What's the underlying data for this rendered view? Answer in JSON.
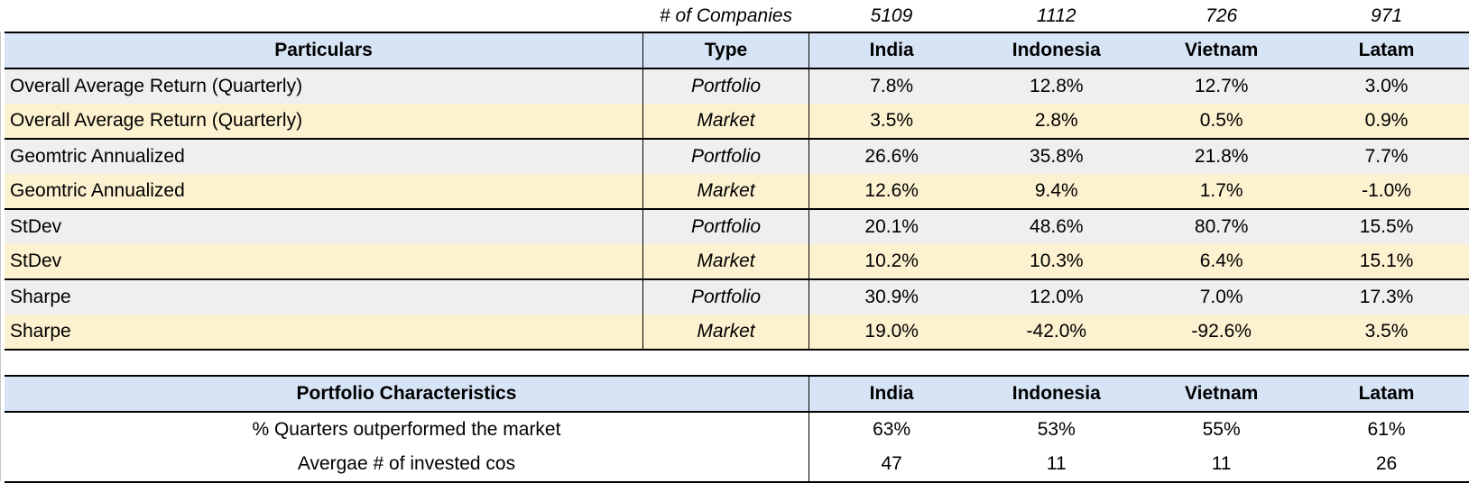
{
  "colors": {
    "header_fill": "#d6e4f5",
    "portfolio_row_fill": "#efefef",
    "market_row_fill": "#fdf2d0"
  },
  "returns": {
    "count_label": "# of Companies",
    "counts": [
      "5109",
      "1112",
      "726",
      "971"
    ],
    "headers": [
      "Particulars",
      "Type",
      "India",
      "Indonesia",
      "Vietnam",
      "Latam"
    ],
    "rows": [
      {
        "label": "Overall Average Return (Quarterly)",
        "type": "Portfolio",
        "values": [
          "7.8%",
          "12.8%",
          "12.7%",
          "3.0%"
        ]
      },
      {
        "label": "Overall Average Return (Quarterly)",
        "type": "Market",
        "values": [
          "3.5%",
          "2.8%",
          "0.5%",
          "0.9%"
        ]
      },
      {
        "label": "Geomtric Annualized",
        "type": "Portfolio",
        "values": [
          "26.6%",
          "35.8%",
          "21.8%",
          "7.7%"
        ]
      },
      {
        "label": "Geomtric Annualized",
        "type": "Market",
        "values": [
          "12.6%",
          "9.4%",
          "1.7%",
          "-1.0%"
        ]
      },
      {
        "label": "StDev",
        "type": "Portfolio",
        "values": [
          "20.1%",
          "48.6%",
          "80.7%",
          "15.5%"
        ]
      },
      {
        "label": "StDev",
        "type": "Market",
        "values": [
          "10.2%",
          "10.3%",
          "6.4%",
          "15.1%"
        ]
      },
      {
        "label": "Sharpe",
        "type": "Portfolio",
        "values": [
          "30.9%",
          "12.0%",
          "7.0%",
          "17.3%"
        ]
      },
      {
        "label": "Sharpe",
        "type": "Market",
        "values": [
          "19.0%",
          "-42.0%",
          "-92.6%",
          "3.5%"
        ]
      }
    ]
  },
  "characteristics": {
    "headers": [
      "Portfolio Characteristics",
      "India",
      "Indonesia",
      "Vietnam",
      "Latam"
    ],
    "rows": [
      {
        "label": "% Quarters outperformed the market",
        "values": [
          "63%",
          "53%",
          "55%",
          "61%"
        ]
      },
      {
        "label": "Avergae # of invested cos",
        "values": [
          "47",
          "11",
          "11",
          "26"
        ]
      }
    ]
  }
}
